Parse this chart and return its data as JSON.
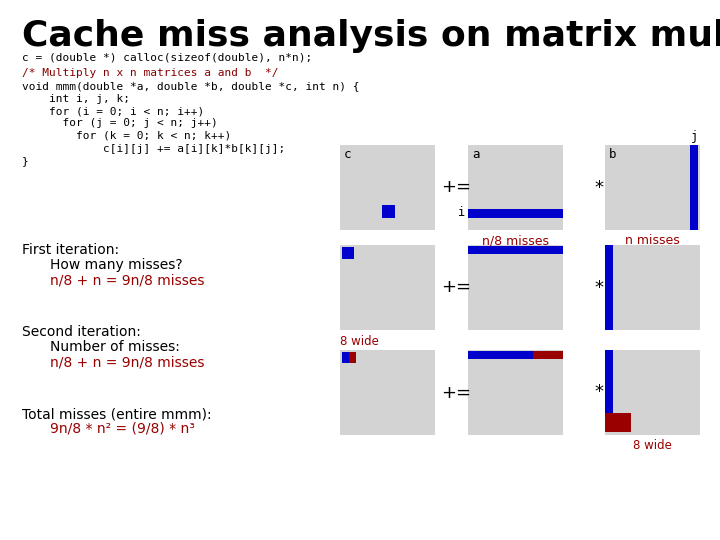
{
  "title": "Cache miss analysis on matrix mult.",
  "title_fontsize": 26,
  "bg_color": "#ffffff",
  "gray_box_color": "#d3d3d3",
  "blue_color": "#0000cc",
  "red_color": "#990000",
  "code_line1": "c = (double *) calloc(sizeof(double), n*n);",
  "code_comment": "/* Multiply n x n matrices a and b  */",
  "code_lines": [
    "void mmm(double *a, double *b, double *c, int n) {",
    "    int i, j, k;",
    "    for (i = 0; i < n; i++)",
    "      for (j = 0; j < n; j++)",
    "        for (k = 0; k < n; k++)",
    "            c[i][j] += a[i][k]*b[k][j];",
    "}"
  ],
  "text_iter1": "First iteration:",
  "text_iter1b": "How many misses?",
  "text_iter1c": "n/8 + n = 9n/8 misses",
  "text_iter2": "Second iteration:",
  "text_iter2b": "Number of misses:",
  "text_iter2c": "n/8 + n = 9n/8 misses",
  "text_total": "Total misses (entire mmm):",
  "text_totalc": "9n/8 * n² = (9/8) * n³",
  "label_n8misses": "n/8 misses",
  "label_nmisses": "n misses",
  "label_8wide1": "8 wide",
  "label_8wide2": "8 wide",
  "label_c": "c",
  "label_a": "a",
  "label_b": "b",
  "label_i": "i",
  "label_j": "j",
  "op_plus_eq": "+=",
  "op_star": "*"
}
